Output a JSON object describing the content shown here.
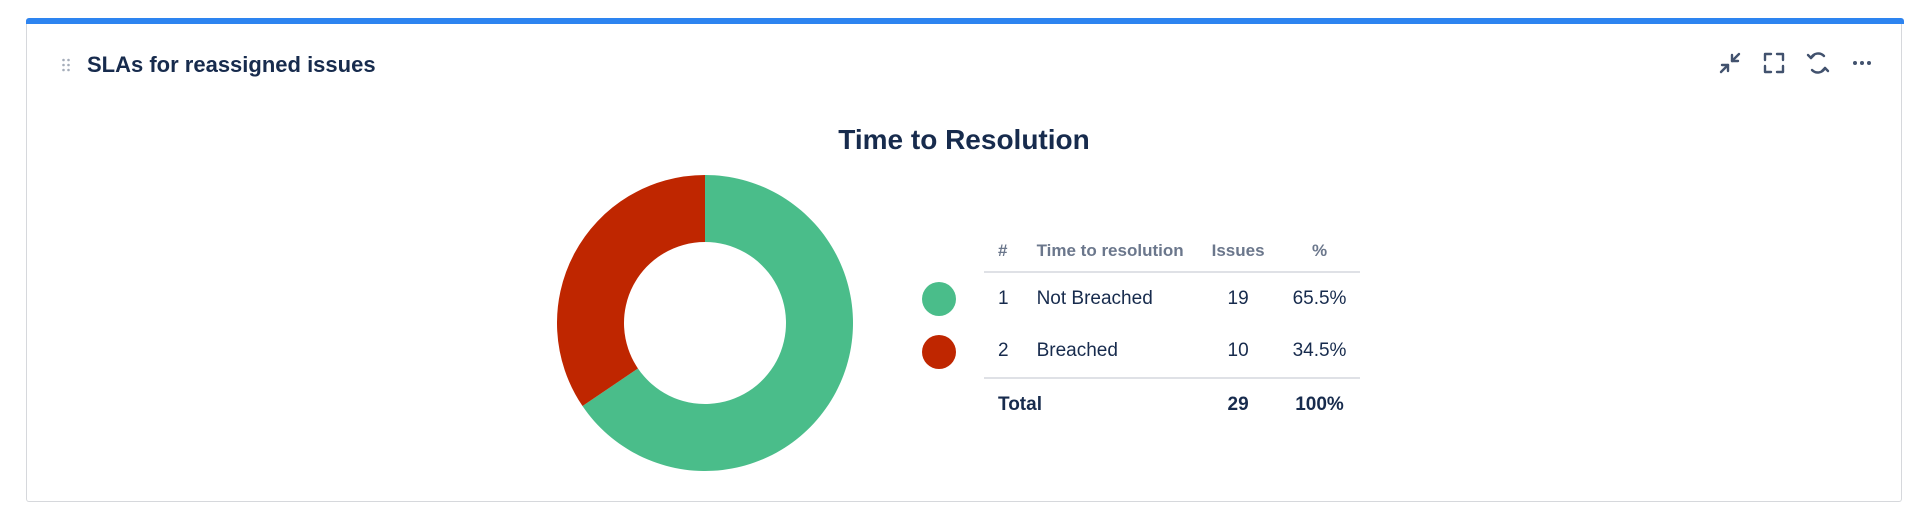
{
  "gadget": {
    "title": "SLAs for reassigned issues",
    "accent_color": "#2d84f0",
    "actions": [
      {
        "name": "minimize-icon"
      },
      {
        "name": "fullscreen-icon"
      },
      {
        "name": "refresh-icon"
      },
      {
        "name": "more-icon"
      }
    ]
  },
  "chart_data": {
    "type": "pie",
    "title": "Time to Resolution",
    "donut": true,
    "columns": {
      "index": "#",
      "label": "Time to resolution",
      "issues": "Issues",
      "percent": "%"
    },
    "slices": [
      {
        "index": "1",
        "label": "Not Breached",
        "value": 19,
        "percent": "65.5%",
        "color": "#4abd8a"
      },
      {
        "index": "2",
        "label": "Breached",
        "value": 10,
        "percent": "34.5%",
        "color": "#bf2600"
      }
    ],
    "total": {
      "label": "Total",
      "value": "29",
      "percent": "100%"
    }
  }
}
